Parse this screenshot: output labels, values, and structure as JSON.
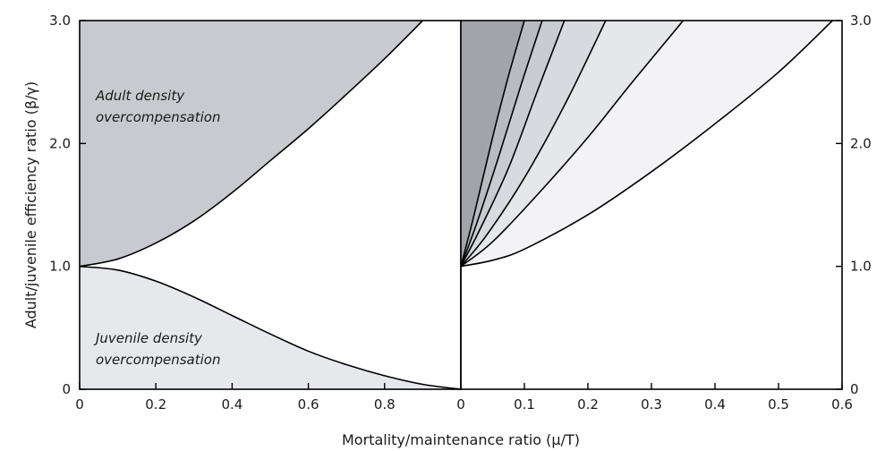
{
  "chart_data": [
    {
      "type": "area",
      "panel": "left",
      "xlim": [
        0,
        1
      ],
      "ylim": [
        0,
        3
      ],
      "x_ticks": [
        0,
        0.2,
        0.4,
        0.6,
        0.8
      ],
      "x_tick_labels": [
        "0",
        "0.2",
        "0.4",
        "0.6",
        "0.8"
      ],
      "y_ticks": [
        0,
        1,
        2,
        3
      ],
      "y_tick_labels": [
        "0",
        "1.0",
        "2.0",
        "3.0"
      ],
      "ylabel": "Adult/juvenile efficiency ratio (β/γ)",
      "regions": [
        {
          "label_lines": [
            "Adult density",
            "overcompensation"
          ],
          "fill": "#c9cacf",
          "boundary": {
            "x": [
              0,
              0.1,
              0.2,
              0.3,
              0.4,
              0.5,
              0.6,
              0.7,
              0.8,
              0.9
            ],
            "y": [
              1.0,
              1.06,
              1.19,
              1.37,
              1.6,
              1.86,
              2.12,
              2.4,
              2.69,
              3.0
            ]
          }
        },
        {
          "label_lines": [
            "Juvenile density",
            "overcompensation"
          ],
          "fill": "#e7e8ec",
          "boundary": {
            "x": [
              0,
              0.1,
              0.2,
              0.3,
              0.4,
              0.5,
              0.6,
              0.7,
              0.8,
              0.9,
              1.0
            ],
            "y": [
              1.0,
              0.97,
              0.88,
              0.75,
              0.6,
              0.45,
              0.31,
              0.2,
              0.11,
              0.04,
              0.0
            ]
          }
        }
      ]
    },
    {
      "type": "area",
      "panel": "right",
      "xlim": [
        0,
        0.6
      ],
      "ylim": [
        0,
        3
      ],
      "x_ticks": [
        0,
        0.1,
        0.2,
        0.3,
        0.4,
        0.5,
        0.6
      ],
      "x_tick_labels": [
        "0",
        "0.1",
        "0.2",
        "0.3",
        "0.4",
        "0.5",
        "0.6"
      ],
      "y_ticks": [
        0,
        1,
        2,
        3
      ],
      "y_tick_labels": [
        "0",
        "1.0",
        "2.0",
        "3.0"
      ],
      "band_fills": [
        "#a2a4aa",
        "#b9bbc1",
        "#c9cbd0",
        "#d9dadf",
        "#e6e7eb",
        "#f3f3f6"
      ],
      "series": [
        {
          "x": [
            0,
            0.02,
            0.05,
            0.075,
            0.1
          ],
          "y": [
            1.0,
            1.4,
            2.05,
            2.55,
            3.0
          ]
        },
        {
          "x": [
            0,
            0.025,
            0.06,
            0.095,
            0.128
          ],
          "y": [
            1.0,
            1.35,
            1.9,
            2.48,
            3.0
          ]
        },
        {
          "x": [
            0,
            0.03,
            0.075,
            0.12,
            0.163
          ],
          "y": [
            1.0,
            1.3,
            1.8,
            2.42,
            3.0
          ]
        },
        {
          "x": [
            0,
            0.04,
            0.1,
            0.165,
            0.228
          ],
          "y": [
            1.0,
            1.25,
            1.72,
            2.33,
            3.0
          ]
        },
        {
          "x": [
            0,
            0.05,
            0.12,
            0.2,
            0.27,
            0.35
          ],
          "y": [
            1.0,
            1.2,
            1.58,
            2.05,
            2.5,
            3.0
          ]
        },
        {
          "x": [
            0,
            0.05,
            0.1,
            0.2,
            0.3,
            0.4,
            0.5,
            0.585
          ],
          "y": [
            1.0,
            1.05,
            1.14,
            1.42,
            1.77,
            2.16,
            2.58,
            3.0
          ]
        }
      ]
    }
  ],
  "xlabel": "Mortality/maintenance ratio (μ/T)",
  "extra_x_tick_label": "0"
}
